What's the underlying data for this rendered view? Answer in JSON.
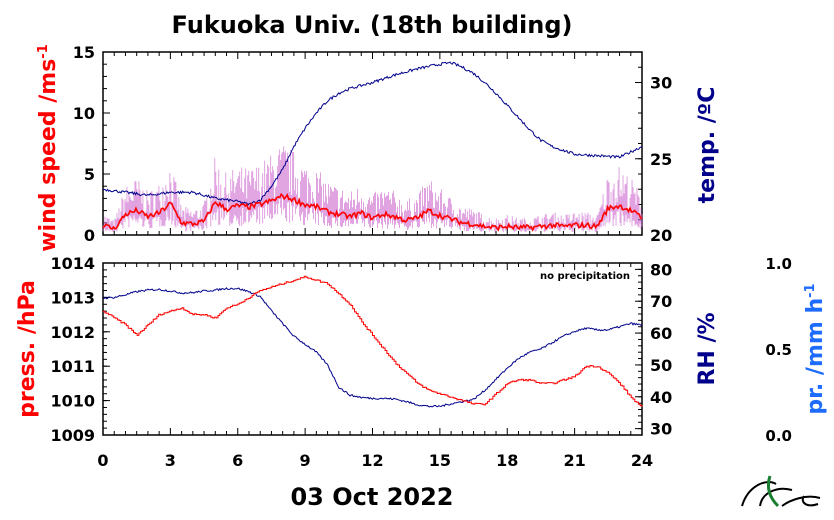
{
  "title": "Fukuoka Univ. (18th building)",
  "date_label": "03 Oct 2022",
  "note": "no precipitation",
  "colors": {
    "wind": "#ff0000",
    "wind_gust": "#cc66cc",
    "temp": "#00008b",
    "pressure": "#ff0000",
    "rh": "#00008b",
    "precip": "#1e6bff",
    "axis": "#000000"
  },
  "labels": {
    "wind": "wind speed /ms",
    "wind_sup": "-1",
    "temp": "temp. /ºC",
    "pressure": "press. /hPa",
    "rh": "RH /%",
    "precip": "pr. /mm h",
    "precip_sup": "-1"
  },
  "chart_data": [
    {
      "type": "line",
      "title": "Fukuoka Univ. (18th building)",
      "xlabel": "03 Oct 2022",
      "xlim": [
        0,
        24
      ],
      "xticks": [
        "0",
        "3",
        "6",
        "9",
        "12",
        "15",
        "18",
        "21",
        "24"
      ],
      "y_left": {
        "label": "wind speed /ms-1",
        "lim": [
          0,
          15
        ],
        "ticks": [
          "0",
          "5",
          "10",
          "15"
        ]
      },
      "y_right": {
        "label": "temp. /ºC",
        "lim": [
          20,
          32
        ],
        "ticks": [
          "20",
          "25",
          "30"
        ]
      },
      "series": [
        {
          "axis": "left",
          "x": [
            0,
            0.5,
            1,
            1.5,
            2,
            2.5,
            3,
            3.5,
            4,
            4.5,
            5,
            5.5,
            6,
            6.5,
            7,
            7.5,
            8,
            8.5,
            9,
            9.5,
            10,
            10.5,
            11,
            11.5,
            12,
            12.5,
            13,
            13.5,
            14,
            14.5,
            15,
            15.5,
            16,
            16.5,
            17,
            17.5,
            18,
            18.5,
            19,
            19.5,
            20,
            20.5,
            21,
            21.5,
            22,
            22.5,
            23,
            23.5,
            24
          ],
          "values": [
            0.8,
            0.5,
            1.7,
            2.0,
            1.5,
            1.8,
            2.6,
            1.0,
            0.9,
            1.1,
            2.7,
            2.1,
            2.4,
            2.3,
            2.5,
            2.8,
            3.2,
            2.9,
            2.5,
            2.3,
            1.9,
            1.7,
            1.5,
            1.8,
            1.4,
            1.7,
            1.5,
            1.2,
            1.4,
            2.0,
            1.6,
            1.3,
            1.0,
            0.9,
            0.7,
            0.6,
            0.7,
            0.6,
            0.6,
            0.7,
            0.8,
            0.7,
            0.8,
            0.8,
            0.7,
            2.2,
            2.4,
            2.0,
            1.4
          ]
        },
        {
          "axis": "right",
          "x": [
            0,
            1,
            2,
            3,
            4,
            5,
            6,
            6.5,
            7,
            7.5,
            8,
            8.5,
            9,
            9.5,
            10,
            10.5,
            11,
            11.5,
            12,
            13,
            14,
            15,
            15.5,
            16,
            16.5,
            17,
            17.5,
            18,
            18.5,
            19,
            19.5,
            20,
            21,
            22,
            23,
            24
          ],
          "values": [
            23.0,
            22.8,
            22.6,
            22.8,
            22.8,
            22.4,
            22.2,
            22.0,
            22.3,
            23.2,
            24.3,
            25.8,
            27.0,
            28.0,
            28.8,
            29.3,
            29.6,
            29.8,
            30.0,
            30.5,
            30.9,
            31.2,
            31.3,
            31.0,
            30.6,
            30.0,
            29.3,
            28.5,
            27.7,
            26.9,
            26.2,
            25.8,
            25.3,
            25.2,
            25.1,
            25.8
          ]
        }
      ]
    },
    {
      "type": "line",
      "xlabel": "03 Oct 2022",
      "xlim": [
        0,
        24
      ],
      "xticks": [
        "0",
        "3",
        "6",
        "9",
        "12",
        "15",
        "18",
        "21",
        "24"
      ],
      "y_left": {
        "label": "press. /hPa",
        "lim": [
          1009,
          1014
        ],
        "ticks": [
          "1009",
          "1010",
          "1011",
          "1012",
          "1013",
          "1014"
        ]
      },
      "y_right": {
        "label": "RH /%",
        "lim": [
          28,
          82
        ],
        "ticks": [
          "30",
          "40",
          "50",
          "60",
          "70",
          "80"
        ]
      },
      "y_far_right": {
        "label": "pr. /mm h-1",
        "lim": [
          0,
          1
        ],
        "ticks": [
          "0.0",
          "0.5",
          "1.0"
        ]
      },
      "series": [
        {
          "axis": "left",
          "x": [
            0,
            0.5,
            1,
            1.5,
            2,
            2.5,
            3,
            3.5,
            4,
            4.5,
            5,
            5.5,
            6,
            6.5,
            7,
            7.5,
            8,
            8.5,
            9,
            9.5,
            10,
            10.5,
            11,
            11.5,
            12,
            12.5,
            13,
            13.5,
            14,
            14.5,
            15,
            15.5,
            16,
            16.5,
            17,
            17.5,
            18,
            18.5,
            19,
            19.5,
            20,
            20.5,
            21,
            21.5,
            22,
            22.5,
            23,
            23.5,
            24
          ],
          "values": [
            1012.6,
            1012.4,
            1012.2,
            1011.9,
            1012.2,
            1012.5,
            1012.6,
            1012.7,
            1012.5,
            1012.5,
            1012.4,
            1012.7,
            1012.8,
            1013.0,
            1013.2,
            1013.3,
            1013.4,
            1013.5,
            1013.6,
            1013.5,
            1013.4,
            1013.1,
            1012.8,
            1012.3,
            1011.9,
            1011.5,
            1011.1,
            1010.8,
            1010.5,
            1010.3,
            1010.2,
            1010.1,
            1010.0,
            1009.9,
            1009.9,
            1010.2,
            1010.5,
            1010.6,
            1010.6,
            1010.5,
            1010.5,
            1010.6,
            1010.7,
            1011.0,
            1011.0,
            1010.8,
            1010.5,
            1010.1,
            1009.8
          ]
        },
        {
          "axis": "right",
          "x": [
            0,
            0.5,
            1,
            1.5,
            2,
            2.5,
            3,
            3.5,
            4,
            4.5,
            5,
            5.5,
            6,
            6.5,
            7,
            7.5,
            8,
            8.5,
            9,
            9.5,
            10,
            10.5,
            11,
            11.5,
            12,
            12.5,
            13,
            13.5,
            14,
            14.5,
            15,
            15.5,
            16,
            16.5,
            17,
            17.5,
            18,
            18.5,
            19,
            19.5,
            20,
            20.5,
            21,
            21.5,
            22,
            22.5,
            23,
            23.5,
            24
          ],
          "values": [
            71.0,
            71.2,
            72.0,
            73.0,
            73.5,
            73.7,
            73.2,
            72.6,
            72.7,
            73.2,
            73.5,
            74.0,
            74.0,
            73.0,
            71.5,
            67.0,
            63.0,
            59.0,
            56.5,
            54.0,
            50.0,
            43.0,
            40.5,
            39.8,
            39.5,
            39.5,
            39.3,
            38.5,
            37.5,
            37.0,
            37.0,
            37.8,
            38.5,
            39.2,
            42.0,
            45.5,
            49.0,
            52.0,
            54.0,
            55.0,
            57.0,
            59.0,
            60.5,
            61.5,
            61.0,
            61.0,
            62.0,
            63.0,
            62.5
          ]
        }
      ]
    }
  ]
}
